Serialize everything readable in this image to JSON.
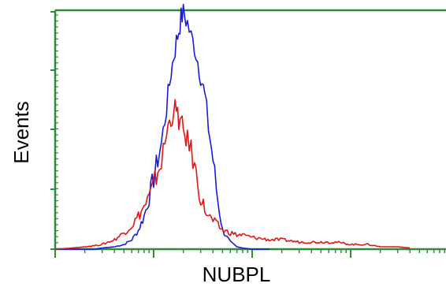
{
  "chart_data": {
    "type": "line",
    "title": "",
    "xlabel": "NUBPL",
    "ylabel": "Events",
    "xscale": "log",
    "grid": false,
    "legend": "none",
    "colors": {
      "axis": "#2e8b3a",
      "blue_series": "#1a1adb",
      "red_series": "#e01616"
    },
    "series": [
      {
        "color": "#1a1adb",
        "x": [
          1,
          1.5,
          2,
          2.5,
          3,
          4,
          5,
          6,
          7,
          8,
          9,
          10,
          11,
          12,
          13,
          14,
          15,
          16,
          17,
          18,
          19,
          20,
          22,
          24,
          26,
          28,
          30,
          33,
          36,
          40,
          45,
          50,
          60,
          70,
          80,
          100,
          150
        ],
        "y": [
          0,
          0,
          0,
          0,
          0.5,
          1,
          2,
          4,
          8,
          14,
          22,
          30,
          38,
          45,
          55,
          65,
          75,
          82,
          88,
          93,
          98,
          100,
          96,
          90,
          86,
          80,
          74,
          65,
          52,
          38,
          20,
          8,
          3,
          1,
          0.5,
          0,
          0
        ]
      },
      {
        "color": "#e01616",
        "x": [
          1,
          1.5,
          2,
          2.5,
          3,
          4,
          5,
          6,
          7,
          8,
          9,
          10,
          11,
          12,
          13,
          14,
          15,
          16,
          17,
          18,
          19,
          20,
          22,
          24,
          26,
          28,
          30,
          33,
          36,
          40,
          45,
          50,
          60,
          70,
          80,
          100,
          150,
          200,
          300,
          400,
          500,
          700,
          1000,
          1500,
          2000,
          3000,
          4000
        ],
        "y": [
          0,
          0.5,
          1,
          1.5,
          2,
          4,
          7,
          10,
          14,
          18,
          22,
          27,
          33,
          37,
          45,
          52,
          55,
          60,
          58,
          55,
          53,
          50,
          46,
          42,
          35,
          28,
          22,
          17,
          14,
          12,
          10,
          8,
          7,
          6,
          6,
          5,
          4,
          4,
          3,
          3,
          3,
          3,
          2,
          2,
          1,
          1,
          0.5
        ]
      }
    ]
  }
}
